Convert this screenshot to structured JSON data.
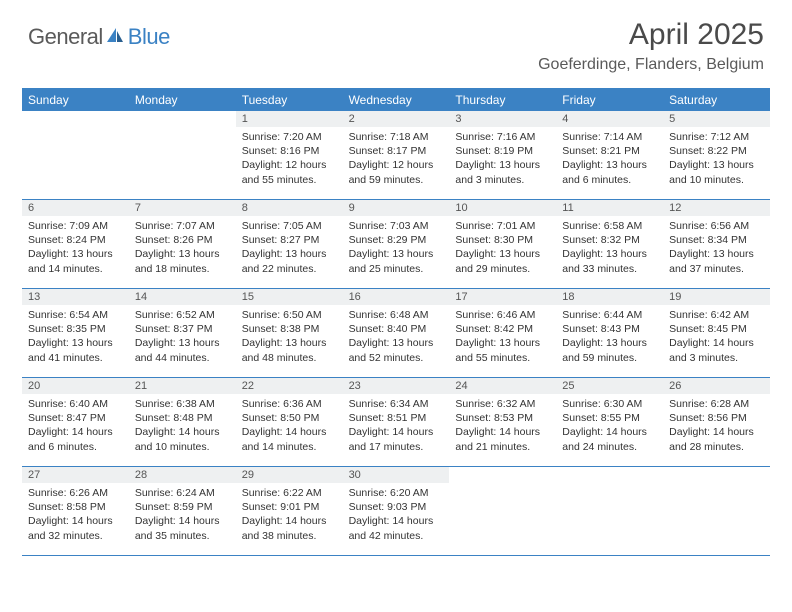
{
  "logo": {
    "text1": "General",
    "text2": "Blue"
  },
  "title": "April 2025",
  "location": "Goeferdinge, Flanders, Belgium",
  "colors": {
    "brand_blue": "#3b82c4",
    "header_text": "#ffffff",
    "daynum_bg": "#eef0f1",
    "body_text": "#333333",
    "logo_gray": "#5a5a5a"
  },
  "day_headers": [
    "Sunday",
    "Monday",
    "Tuesday",
    "Wednesday",
    "Thursday",
    "Friday",
    "Saturday"
  ],
  "weeks": [
    [
      {
        "empty": true
      },
      {
        "empty": true
      },
      {
        "num": "1",
        "sunrise": "Sunrise: 7:20 AM",
        "sunset": "Sunset: 8:16 PM",
        "daylight": "Daylight: 12 hours and 55 minutes."
      },
      {
        "num": "2",
        "sunrise": "Sunrise: 7:18 AM",
        "sunset": "Sunset: 8:17 PM",
        "daylight": "Daylight: 12 hours and 59 minutes."
      },
      {
        "num": "3",
        "sunrise": "Sunrise: 7:16 AM",
        "sunset": "Sunset: 8:19 PM",
        "daylight": "Daylight: 13 hours and 3 minutes."
      },
      {
        "num": "4",
        "sunrise": "Sunrise: 7:14 AM",
        "sunset": "Sunset: 8:21 PM",
        "daylight": "Daylight: 13 hours and 6 minutes."
      },
      {
        "num": "5",
        "sunrise": "Sunrise: 7:12 AM",
        "sunset": "Sunset: 8:22 PM",
        "daylight": "Daylight: 13 hours and 10 minutes."
      }
    ],
    [
      {
        "num": "6",
        "sunrise": "Sunrise: 7:09 AM",
        "sunset": "Sunset: 8:24 PM",
        "daylight": "Daylight: 13 hours and 14 minutes."
      },
      {
        "num": "7",
        "sunrise": "Sunrise: 7:07 AM",
        "sunset": "Sunset: 8:26 PM",
        "daylight": "Daylight: 13 hours and 18 minutes."
      },
      {
        "num": "8",
        "sunrise": "Sunrise: 7:05 AM",
        "sunset": "Sunset: 8:27 PM",
        "daylight": "Daylight: 13 hours and 22 minutes."
      },
      {
        "num": "9",
        "sunrise": "Sunrise: 7:03 AM",
        "sunset": "Sunset: 8:29 PM",
        "daylight": "Daylight: 13 hours and 25 minutes."
      },
      {
        "num": "10",
        "sunrise": "Sunrise: 7:01 AM",
        "sunset": "Sunset: 8:30 PM",
        "daylight": "Daylight: 13 hours and 29 minutes."
      },
      {
        "num": "11",
        "sunrise": "Sunrise: 6:58 AM",
        "sunset": "Sunset: 8:32 PM",
        "daylight": "Daylight: 13 hours and 33 minutes."
      },
      {
        "num": "12",
        "sunrise": "Sunrise: 6:56 AM",
        "sunset": "Sunset: 8:34 PM",
        "daylight": "Daylight: 13 hours and 37 minutes."
      }
    ],
    [
      {
        "num": "13",
        "sunrise": "Sunrise: 6:54 AM",
        "sunset": "Sunset: 8:35 PM",
        "daylight": "Daylight: 13 hours and 41 minutes."
      },
      {
        "num": "14",
        "sunrise": "Sunrise: 6:52 AM",
        "sunset": "Sunset: 8:37 PM",
        "daylight": "Daylight: 13 hours and 44 minutes."
      },
      {
        "num": "15",
        "sunrise": "Sunrise: 6:50 AM",
        "sunset": "Sunset: 8:38 PM",
        "daylight": "Daylight: 13 hours and 48 minutes."
      },
      {
        "num": "16",
        "sunrise": "Sunrise: 6:48 AM",
        "sunset": "Sunset: 8:40 PM",
        "daylight": "Daylight: 13 hours and 52 minutes."
      },
      {
        "num": "17",
        "sunrise": "Sunrise: 6:46 AM",
        "sunset": "Sunset: 8:42 PM",
        "daylight": "Daylight: 13 hours and 55 minutes."
      },
      {
        "num": "18",
        "sunrise": "Sunrise: 6:44 AM",
        "sunset": "Sunset: 8:43 PM",
        "daylight": "Daylight: 13 hours and 59 minutes."
      },
      {
        "num": "19",
        "sunrise": "Sunrise: 6:42 AM",
        "sunset": "Sunset: 8:45 PM",
        "daylight": "Daylight: 14 hours and 3 minutes."
      }
    ],
    [
      {
        "num": "20",
        "sunrise": "Sunrise: 6:40 AM",
        "sunset": "Sunset: 8:47 PM",
        "daylight": "Daylight: 14 hours and 6 minutes."
      },
      {
        "num": "21",
        "sunrise": "Sunrise: 6:38 AM",
        "sunset": "Sunset: 8:48 PM",
        "daylight": "Daylight: 14 hours and 10 minutes."
      },
      {
        "num": "22",
        "sunrise": "Sunrise: 6:36 AM",
        "sunset": "Sunset: 8:50 PM",
        "daylight": "Daylight: 14 hours and 14 minutes."
      },
      {
        "num": "23",
        "sunrise": "Sunrise: 6:34 AM",
        "sunset": "Sunset: 8:51 PM",
        "daylight": "Daylight: 14 hours and 17 minutes."
      },
      {
        "num": "24",
        "sunrise": "Sunrise: 6:32 AM",
        "sunset": "Sunset: 8:53 PM",
        "daylight": "Daylight: 14 hours and 21 minutes."
      },
      {
        "num": "25",
        "sunrise": "Sunrise: 6:30 AM",
        "sunset": "Sunset: 8:55 PM",
        "daylight": "Daylight: 14 hours and 24 minutes."
      },
      {
        "num": "26",
        "sunrise": "Sunrise: 6:28 AM",
        "sunset": "Sunset: 8:56 PM",
        "daylight": "Daylight: 14 hours and 28 minutes."
      }
    ],
    [
      {
        "num": "27",
        "sunrise": "Sunrise: 6:26 AM",
        "sunset": "Sunset: 8:58 PM",
        "daylight": "Daylight: 14 hours and 32 minutes."
      },
      {
        "num": "28",
        "sunrise": "Sunrise: 6:24 AM",
        "sunset": "Sunset: 8:59 PM",
        "daylight": "Daylight: 14 hours and 35 minutes."
      },
      {
        "num": "29",
        "sunrise": "Sunrise: 6:22 AM",
        "sunset": "Sunset: 9:01 PM",
        "daylight": "Daylight: 14 hours and 38 minutes."
      },
      {
        "num": "30",
        "sunrise": "Sunrise: 6:20 AM",
        "sunset": "Sunset: 9:03 PM",
        "daylight": "Daylight: 14 hours and 42 minutes."
      },
      {
        "empty": true
      },
      {
        "empty": true
      },
      {
        "empty": true
      }
    ]
  ]
}
